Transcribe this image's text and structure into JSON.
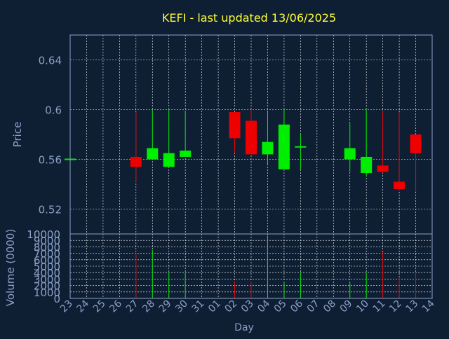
{
  "chart_data": {
    "type": "candlestick",
    "title": "KEFI - last updated 13/06/2025",
    "xlabel": "Day",
    "ylabel_price": "Price",
    "ylabel_volume": "Volume (0000)",
    "x_ticks": [
      "23",
      "24",
      "25",
      "26",
      "27",
      "28",
      "29",
      "30",
      "31",
      "01",
      "02",
      "03",
      "04",
      "05",
      "06",
      "07",
      "08",
      "09",
      "10",
      "11",
      "12",
      "13",
      "14"
    ],
    "price_ylim": [
      0.5,
      0.66
    ],
    "price_ticks": [
      "0.52",
      "0.56",
      "0.6",
      "0.64"
    ],
    "volume_ylim": [
      0,
      10000
    ],
    "volume_ticks": [
      "0",
      "1000",
      "2000",
      "3000",
      "4000",
      "5000",
      "6000",
      "7000",
      "8000",
      "9000",
      "10000"
    ],
    "grid": true,
    "colors": {
      "background": "#0f1f33",
      "title": "#ffff33",
      "axis_text": "#8aa0c8",
      "up": "#00ee00",
      "down": "#ee0000",
      "grid": "#ffffff",
      "flat": "#00ee00"
    },
    "candles": [
      {
        "day": "23",
        "open": 0.56,
        "high": 0.56,
        "low": 0.56,
        "close": 0.56,
        "volume": 0
      },
      {
        "day": "27",
        "open": 0.562,
        "high": 0.598,
        "low": 0.542,
        "close": 0.554,
        "volume": 7000
      },
      {
        "day": "28",
        "open": 0.56,
        "high": 0.6,
        "low": 0.56,
        "close": 0.569,
        "volume": 7500
      },
      {
        "day": "29",
        "open": 0.554,
        "high": 0.6,
        "low": 0.554,
        "close": 0.565,
        "volume": 4000
      },
      {
        "day": "30",
        "open": 0.562,
        "high": 0.599,
        "low": 0.562,
        "close": 0.567,
        "volume": 4000
      },
      {
        "day": "02",
        "open": 0.598,
        "high": 0.598,
        "low": 0.565,
        "close": 0.577,
        "volume": 2700
      },
      {
        "day": "03",
        "open": 0.591,
        "high": 0.6,
        "low": 0.564,
        "close": 0.564,
        "volume": 2600
      },
      {
        "day": "04",
        "open": 0.564,
        "high": 0.598,
        "low": 0.556,
        "close": 0.574,
        "volume": 9700
      },
      {
        "day": "05",
        "open": 0.552,
        "high": 0.6,
        "low": 0.552,
        "close": 0.588,
        "volume": 2600
      },
      {
        "day": "06",
        "open": 0.57,
        "high": 0.58,
        "low": 0.552,
        "close": 0.57,
        "volume": 4000
      },
      {
        "day": "09",
        "open": 0.56,
        "high": 0.589,
        "low": 0.55,
        "close": 0.569,
        "volume": 2500
      },
      {
        "day": "10",
        "open": 0.549,
        "high": 0.6,
        "low": 0.546,
        "close": 0.562,
        "volume": 4000
      },
      {
        "day": "11",
        "open": 0.555,
        "high": 0.599,
        "low": 0.549,
        "close": 0.55,
        "volume": 7200
      },
      {
        "day": "12",
        "open": 0.542,
        "high": 0.598,
        "low": 0.535,
        "close": 0.536,
        "volume": 3200
      },
      {
        "day": "13",
        "open": 0.58,
        "high": 0.58,
        "low": 0.534,
        "close": 0.565,
        "volume": 4000
      }
    ]
  }
}
